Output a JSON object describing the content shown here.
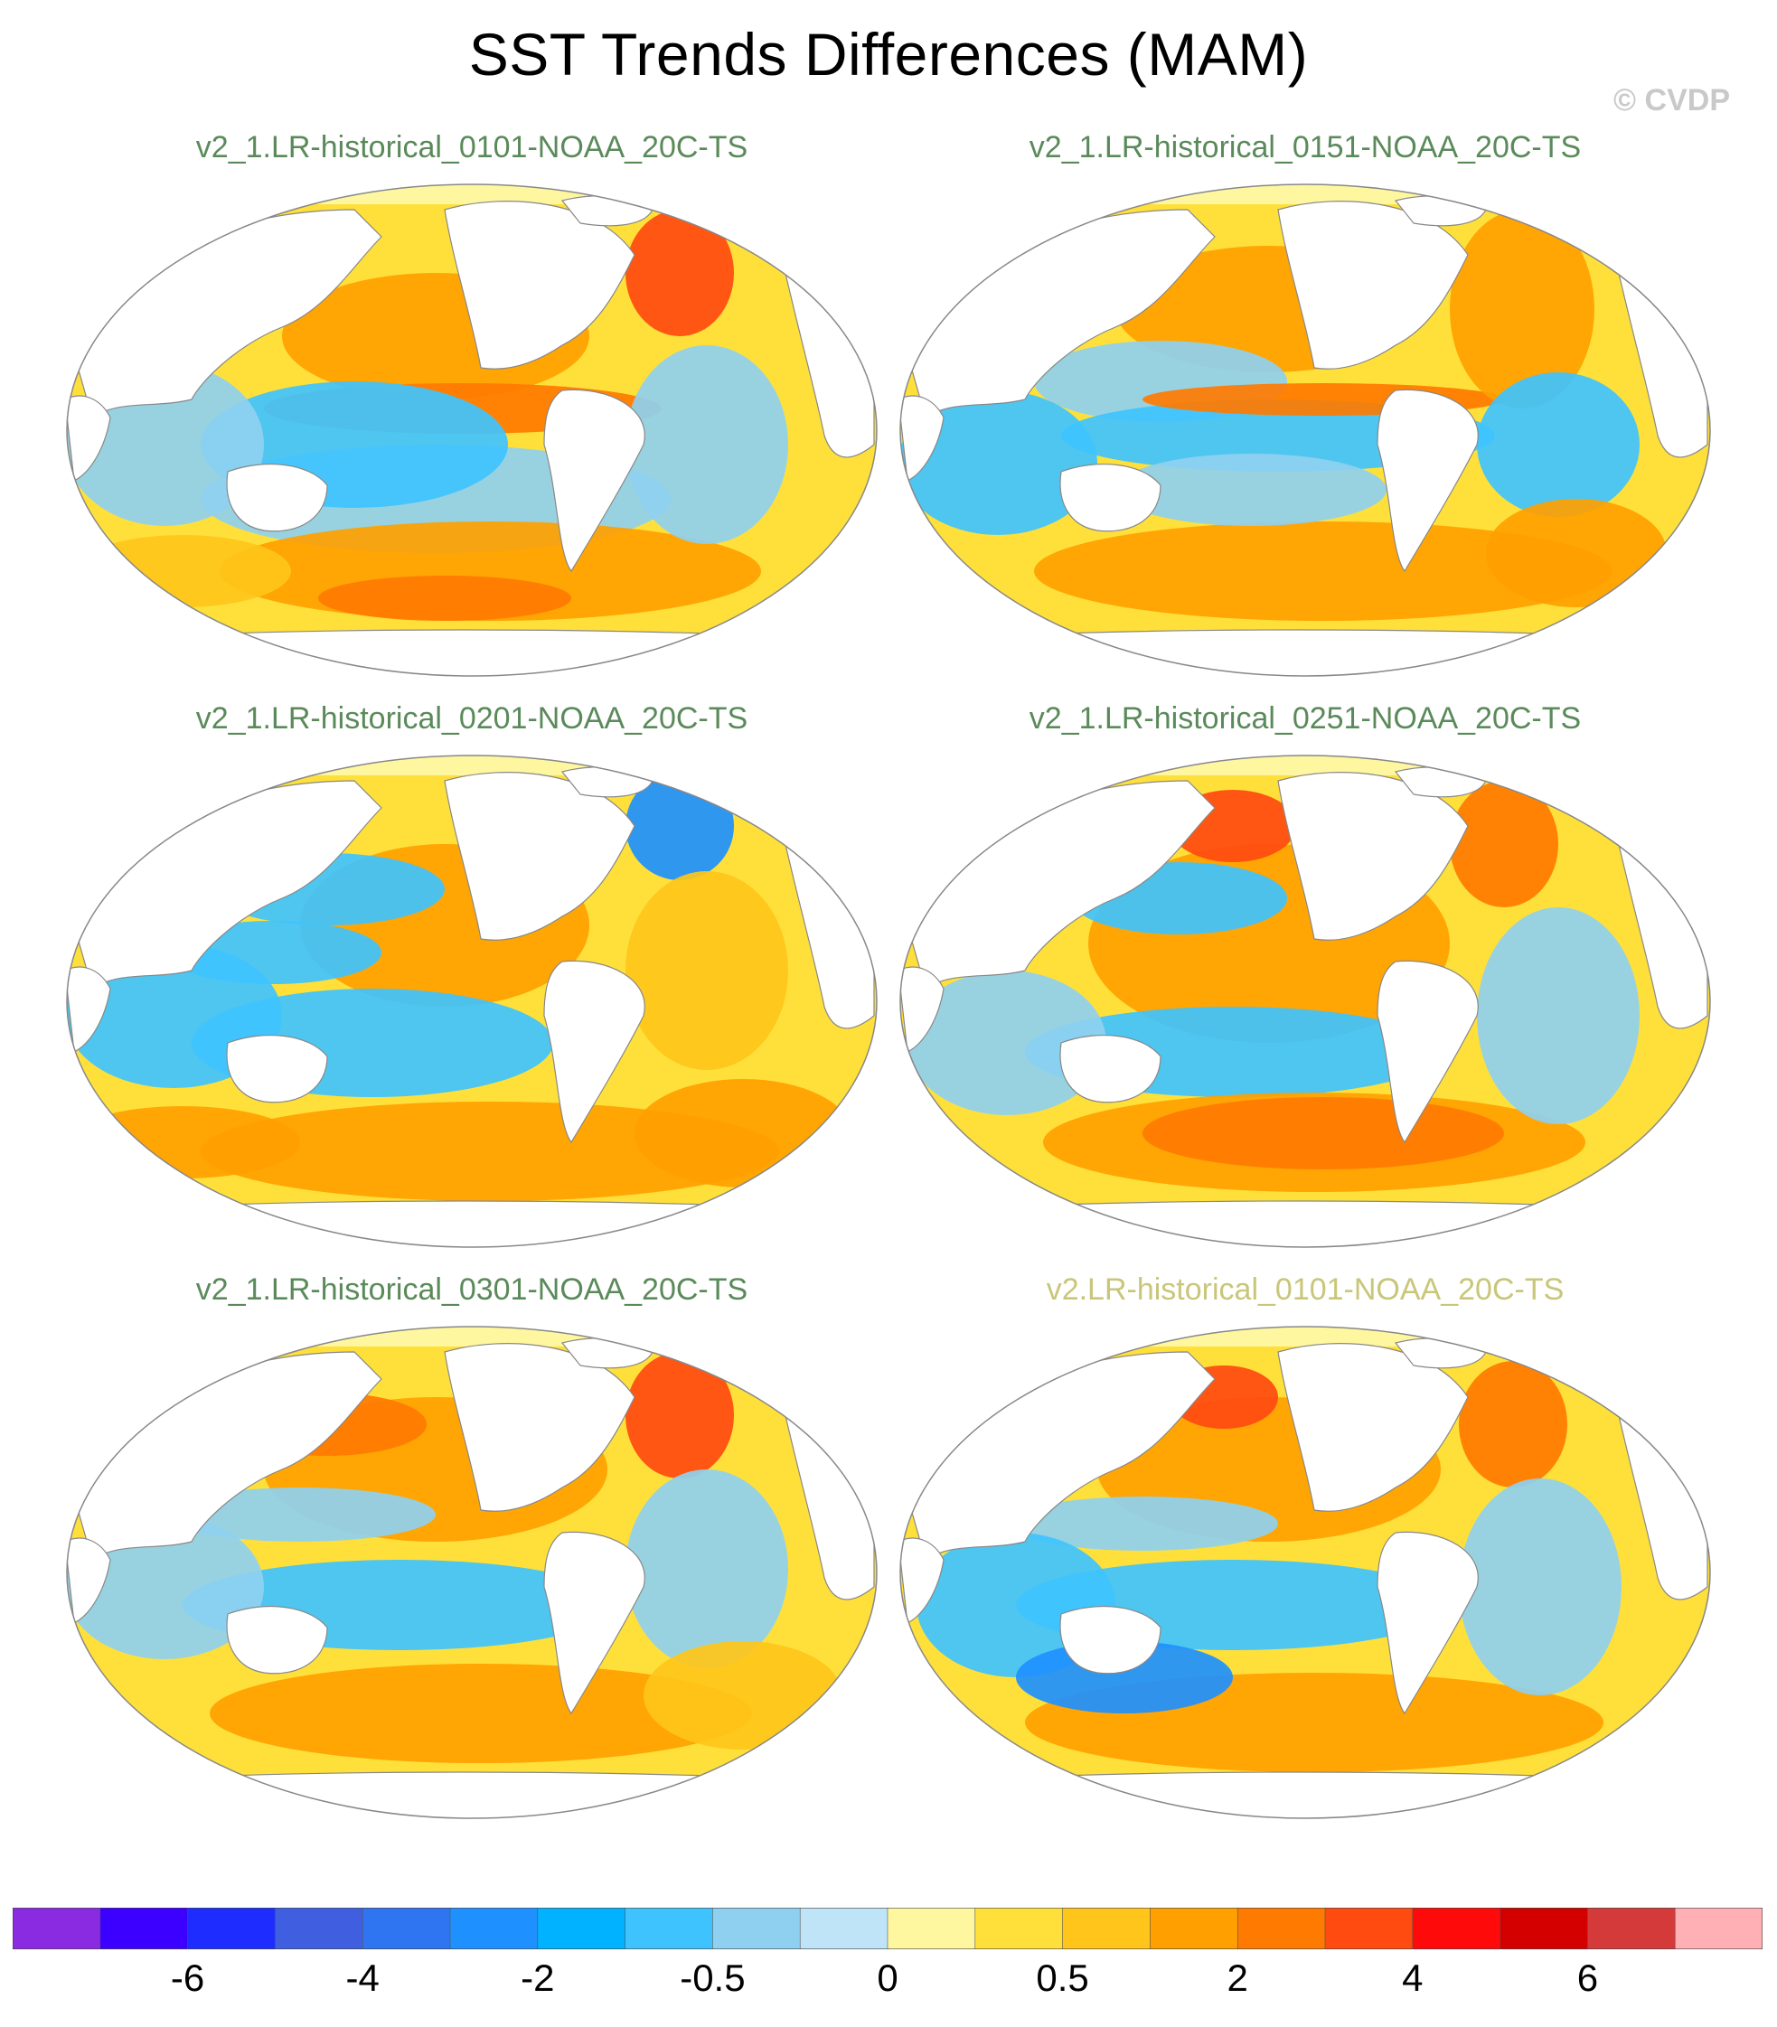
{
  "figure": {
    "title": "SST Trends Differences (MAM)",
    "copyright": "© CVDP"
  },
  "panels": [
    {
      "title": "v2_1.LR-historical_0101-NOAA_20C-TS",
      "title_color": "#5a8a5a",
      "pattern": "A"
    },
    {
      "title": "v2_1.LR-historical_0151-NOAA_20C-TS",
      "title_color": "#5a8a5a",
      "pattern": "B"
    },
    {
      "title": "v2_1.LR-historical_0201-NOAA_20C-TS",
      "title_color": "#5a8a5a",
      "pattern": "C"
    },
    {
      "title": "v2_1.LR-historical_0251-NOAA_20C-TS",
      "title_color": "#5a8a5a",
      "pattern": "D"
    },
    {
      "title": "v2_1.LR-historical_0301-NOAA_20C-TS",
      "title_color": "#5a8a5a",
      "pattern": "E"
    },
    {
      "title": "v2.LR-historical_0101-NOAA_20C-TS",
      "title_color": "#c9c67a",
      "pattern": "F"
    }
  ],
  "colorbar": {
    "colors": [
      "#8a2be2",
      "#3b00ff",
      "#1f2cff",
      "#3f5fe0",
      "#2f74f0",
      "#1e90ff",
      "#00b2ff",
      "#3fc3ff",
      "#8fd0f0",
      "#bfe3f7",
      "#fff7a0",
      "#ffe03a",
      "#ffc51a",
      "#ffa000",
      "#ff7a00",
      "#ff4a10",
      "#ff0a0a",
      "#d40000",
      "#d43a3a",
      "#ffb0b4"
    ],
    "tick_labels": [
      {
        "text": "-6",
        "boundary": 2
      },
      {
        "text": "-4",
        "boundary": 4
      },
      {
        "text": "-2",
        "boundary": 6
      },
      {
        "text": "-0.5",
        "boundary": 8
      },
      {
        "text": "0",
        "boundary": 10
      },
      {
        "text": "0.5",
        "boundary": 12
      },
      {
        "text": "2",
        "boundary": 14
      },
      {
        "text": "4",
        "boundary": 16
      },
      {
        "text": "6",
        "boundary": 18
      }
    ]
  },
  "map_colors": {
    "ocean_base": "#ffe03a",
    "warm": "#ffc51a",
    "warmer": "#ffa000",
    "hot": "#ff7a00",
    "hotter": "#ff4a10",
    "cool": "#bfe3f7",
    "cooler": "#8fd0f0",
    "cold": "#3fc3ff",
    "colder": "#1e90ff",
    "ice": "#fff7a0",
    "land": "#ffffff",
    "outline": "#888888"
  }
}
